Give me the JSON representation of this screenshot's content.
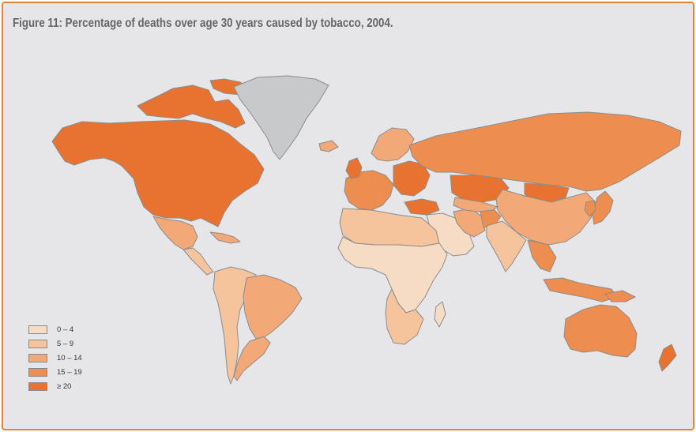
{
  "title": "Figure 11: Percentage of deaths over age 30 years caused by tobacco, 2004.",
  "colors": {
    "frame": "#e8823a",
    "background": "#e6e6e8",
    "no_data": "#c8c9ca",
    "border": "#8c8c8c",
    "classes": [
      "#f6dcc4",
      "#f5c49c",
      "#f2a877",
      "#ee8d50",
      "#e8722f"
    ]
  },
  "legend": [
    {
      "label": "0 – 4",
      "class": 0
    },
    {
      "label": "5 – 9",
      "class": 1
    },
    {
      "label": "10 – 14",
      "class": 2
    },
    {
      "label": "15 – 19",
      "class": 3
    },
    {
      "label": "≥ 20",
      "class": 4
    }
  ],
  "regions": [
    {
      "name": "North America",
      "class": 4
    },
    {
      "name": "Canadian Arctic",
      "class": 4
    },
    {
      "name": "Greenland",
      "class": null
    },
    {
      "name": "Mexico",
      "class": 2
    },
    {
      "name": "Central America",
      "class": 1
    },
    {
      "name": "Caribbean",
      "class": 2
    },
    {
      "name": "South America",
      "class": 1
    },
    {
      "name": "Brazil",
      "class": 2
    },
    {
      "name": "Southern Cone",
      "class": 2
    },
    {
      "name": "Western Europe",
      "class": 3
    },
    {
      "name": "United Kingdom",
      "class": 4
    },
    {
      "name": "Eastern Europe",
      "class": 4
    },
    {
      "name": "Scandinavia",
      "class": 2
    },
    {
      "name": "Russia",
      "class": 3
    },
    {
      "name": "Kazakhstan",
      "class": 4
    },
    {
      "name": "Mongolia",
      "class": 4
    },
    {
      "name": "China",
      "class": 2
    },
    {
      "name": "Japan",
      "class": 3
    },
    {
      "name": "Korea",
      "class": 3
    },
    {
      "name": "Turkey",
      "class": 4
    },
    {
      "name": "Middle East",
      "class": 0
    },
    {
      "name": "Iran",
      "class": 2
    },
    {
      "name": "Afghanistan",
      "class": 3
    },
    {
      "name": "Central Asia",
      "class": 2
    },
    {
      "name": "India",
      "class": 1
    },
    {
      "name": "Southeast Asia",
      "class": 3
    },
    {
      "name": "Indonesia",
      "class": 3
    },
    {
      "name": "North Africa",
      "class": 1
    },
    {
      "name": "Sub-Saharan Africa",
      "class": 0
    },
    {
      "name": "Southern Africa",
      "class": 1
    },
    {
      "name": "Madagascar",
      "class": 0
    },
    {
      "name": "Australia",
      "class": 3
    },
    {
      "name": "New Zealand",
      "class": 4
    },
    {
      "name": "Papua New Guinea",
      "class": 3
    },
    {
      "name": "Iceland",
      "class": 2
    }
  ]
}
